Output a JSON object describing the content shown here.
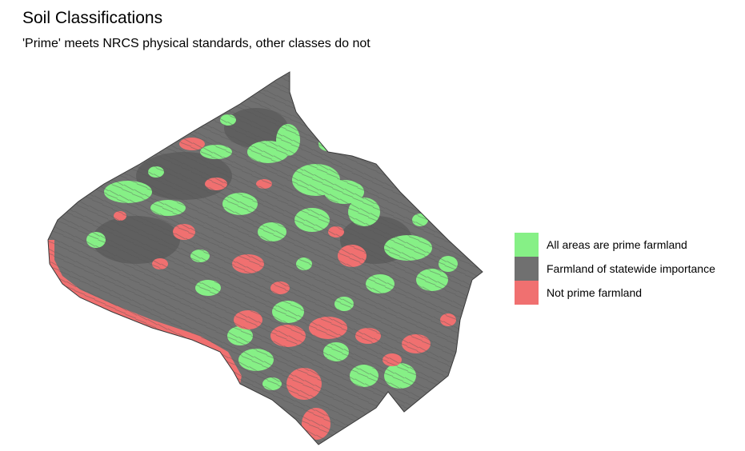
{
  "title": "Soil Classifications",
  "subtitle": "'Prime' meets NRCS physical standards, other classes do not",
  "colors": {
    "prime": "#86f086",
    "statewide": "#707070",
    "not_prime": "#f07070",
    "outline": "#3a3a3a"
  },
  "legend": {
    "items": [
      {
        "key": "prime",
        "label": "All areas are prime farmland",
        "color": "#86f086"
      },
      {
        "key": "statewide",
        "label": "Farmland of statewide importance",
        "color": "#707070"
      },
      {
        "key": "not_prime",
        "label": "Not prime farmland",
        "color": "#f07070"
      }
    ]
  }
}
